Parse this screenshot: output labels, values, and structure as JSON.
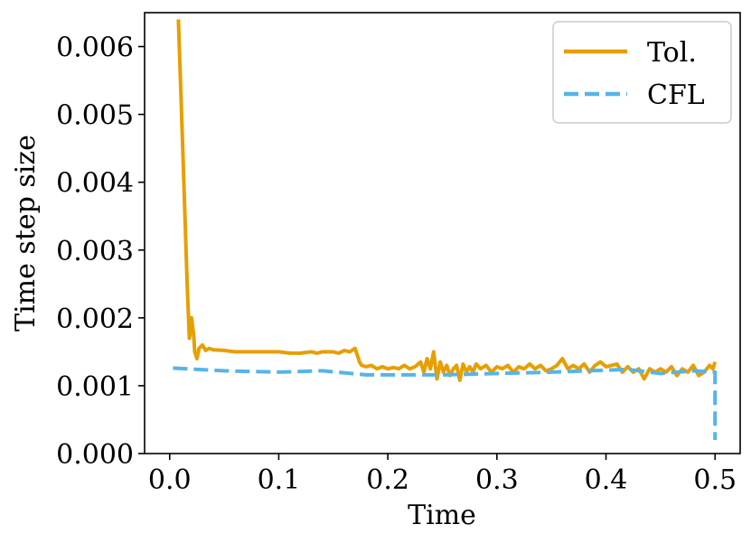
{
  "chart_data": {
    "type": "line",
    "title": "",
    "xlabel": "Time",
    "ylabel": "Time step size",
    "xlim": [
      -0.023,
      0.523
    ],
    "ylim": [
      0,
      0.0065
    ],
    "xticks": [
      0.0,
      0.1,
      0.2,
      0.3,
      0.4,
      0.5
    ],
    "xtick_labels": [
      "0.0",
      "0.1",
      "0.2",
      "0.3",
      "0.4",
      "0.5"
    ],
    "yticks": [
      0,
      0.001,
      0.002,
      0.003,
      0.004,
      0.005,
      0.006
    ],
    "ytick_labels": [
      "0.000",
      "0.001",
      "0.002",
      "0.003",
      "0.004",
      "0.005",
      "0.006"
    ],
    "grid": false,
    "legend_position": "top-right",
    "series": [
      {
        "name": "Tol.",
        "color": "#E69F00",
        "style": "solid",
        "x": [
          0.008,
          0.012,
          0.016,
          0.018,
          0.019,
          0.02,
          0.022,
          0.023,
          0.025,
          0.027,
          0.03,
          0.033,
          0.036,
          0.04,
          0.05,
          0.06,
          0.08,
          0.1,
          0.11,
          0.12,
          0.13,
          0.135,
          0.14,
          0.15,
          0.155,
          0.16,
          0.165,
          0.17,
          0.172,
          0.174,
          0.176,
          0.18,
          0.185,
          0.19,
          0.195,
          0.2,
          0.205,
          0.21,
          0.215,
          0.22,
          0.225,
          0.23,
          0.233,
          0.236,
          0.239,
          0.242,
          0.245,
          0.248,
          0.251,
          0.254,
          0.257,
          0.26,
          0.263,
          0.266,
          0.269,
          0.272,
          0.275,
          0.278,
          0.281,
          0.285,
          0.29,
          0.295,
          0.3,
          0.305,
          0.31,
          0.315,
          0.32,
          0.325,
          0.33,
          0.335,
          0.34,
          0.345,
          0.35,
          0.355,
          0.36,
          0.365,
          0.37,
          0.375,
          0.38,
          0.385,
          0.39,
          0.395,
          0.4,
          0.405,
          0.41,
          0.415,
          0.42,
          0.425,
          0.43,
          0.435,
          0.44,
          0.445,
          0.45,
          0.455,
          0.46,
          0.465,
          0.47,
          0.475,
          0.48,
          0.485,
          0.49,
          0.495,
          0.498,
          0.5
        ],
        "y": [
          0.0064,
          0.0045,
          0.0025,
          0.0017,
          0.0018,
          0.002,
          0.00175,
          0.0015,
          0.0014,
          0.00155,
          0.0016,
          0.00152,
          0.00155,
          0.00153,
          0.00152,
          0.0015,
          0.0015,
          0.0015,
          0.00148,
          0.00148,
          0.0015,
          0.00148,
          0.0015,
          0.0015,
          0.00148,
          0.00152,
          0.0015,
          0.00155,
          0.00145,
          0.00135,
          0.0013,
          0.00128,
          0.0013,
          0.00125,
          0.00128,
          0.00125,
          0.00127,
          0.00125,
          0.0013,
          0.00125,
          0.00128,
          0.00135,
          0.0012,
          0.0014,
          0.00125,
          0.0015,
          0.0011,
          0.00135,
          0.0012,
          0.0013,
          0.00115,
          0.00125,
          0.0013,
          0.00108,
          0.00132,
          0.0012,
          0.00128,
          0.0012,
          0.00132,
          0.00125,
          0.0013,
          0.0012,
          0.00128,
          0.00125,
          0.0013,
          0.0012,
          0.00128,
          0.00125,
          0.00132,
          0.00125,
          0.0013,
          0.00122,
          0.00125,
          0.0013,
          0.0014,
          0.00125,
          0.0013,
          0.00125,
          0.00132,
          0.0012,
          0.0013,
          0.00135,
          0.00128,
          0.0013,
          0.00132,
          0.0012,
          0.00128,
          0.0012,
          0.00125,
          0.0011,
          0.00125,
          0.0012,
          0.00125,
          0.0012,
          0.00128,
          0.00115,
          0.00125,
          0.0012,
          0.0013,
          0.00115,
          0.0012,
          0.0013,
          0.00125,
          0.00135
        ]
      },
      {
        "name": "CFL",
        "color": "#56B4E9",
        "style": "dashed",
        "x": [
          0.003,
          0.05,
          0.1,
          0.14,
          0.18,
          0.25,
          0.3,
          0.35,
          0.4,
          0.42,
          0.45,
          0.48,
          0.5,
          0.5
        ],
        "y": [
          0.00126,
          0.00122,
          0.0012,
          0.00122,
          0.00116,
          0.00116,
          0.00118,
          0.0012,
          0.00123,
          0.00124,
          0.00118,
          0.00122,
          0.0012,
          0.0002
        ]
      }
    ]
  }
}
